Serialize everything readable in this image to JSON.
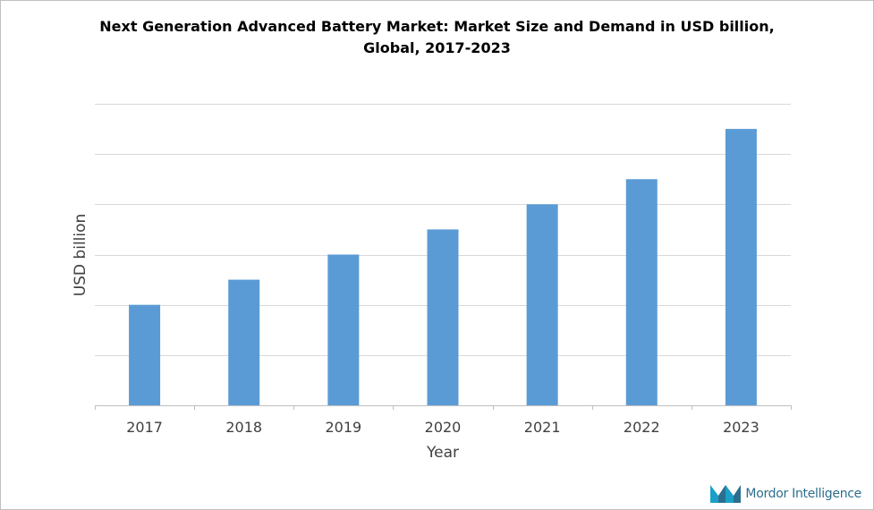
{
  "chart_data": {
    "type": "bar",
    "title_lines": [
      "Next Generation Advanced Battery Market: Market Size and Demand in USD billion,",
      "Global, 2017-2023"
    ],
    "xlabel": "Year",
    "ylabel": "USD billion",
    "categories": [
      "2017",
      "2018",
      "2019",
      "2020",
      "2021",
      "2022",
      "2023"
    ],
    "values": [
      2,
      2.5,
      3,
      3.5,
      4,
      4.5,
      5.5
    ],
    "ylim": [
      0,
      6
    ],
    "grid": true,
    "y_tick_labels_shown": false,
    "bar_color": "#5b9bd5",
    "grid_color": "#d9d9d9",
    "axis_color": "#bfbfbf"
  },
  "branding": {
    "logo_text": "Mordor Intelligence",
    "logo_colors": [
      "#1aa0c8",
      "#2c6e8f"
    ]
  }
}
